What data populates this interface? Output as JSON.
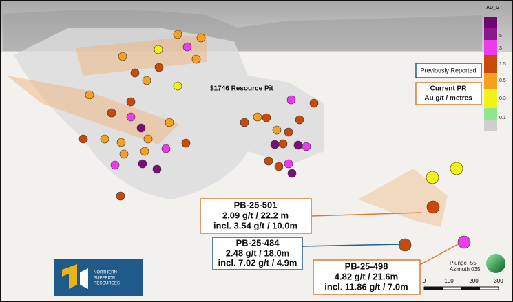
{
  "legend": {
    "title": "AU_GT",
    "labels": [
      "5",
      "3",
      "1.5",
      "0.5",
      "0.3",
      "0.1"
    ]
  },
  "key": {
    "previous": "Previously Reported",
    "current": [
      "Current PR",
      "Au g/t / metres"
    ]
  },
  "pit_label": "$1746 Resource Pit",
  "callouts": [
    {
      "hole": "PB-25-501",
      "lines": [
        "2.09 g/t / 22.2 m",
        "incl. 3.54 g/t / 10.0m"
      ]
    },
    {
      "hole": "PB-25-484",
      "lines": [
        "2.48 g/t  / 18.0m",
        "incl. 7.02 g/t / 4.9m"
      ]
    },
    {
      "hole": "PB-25-498",
      "lines": [
        "4.82 g/t / 21.6m",
        "incl. 11.86 g/t / 7.0m"
      ]
    }
  ],
  "orientation": [
    "Plunge -55",
    "Azimuth 035"
  ],
  "scale": [
    "0",
    "100",
    "200",
    "300"
  ],
  "logo": [
    "NORTHERN",
    "SUPERIOR",
    "RESOURCES"
  ]
}
